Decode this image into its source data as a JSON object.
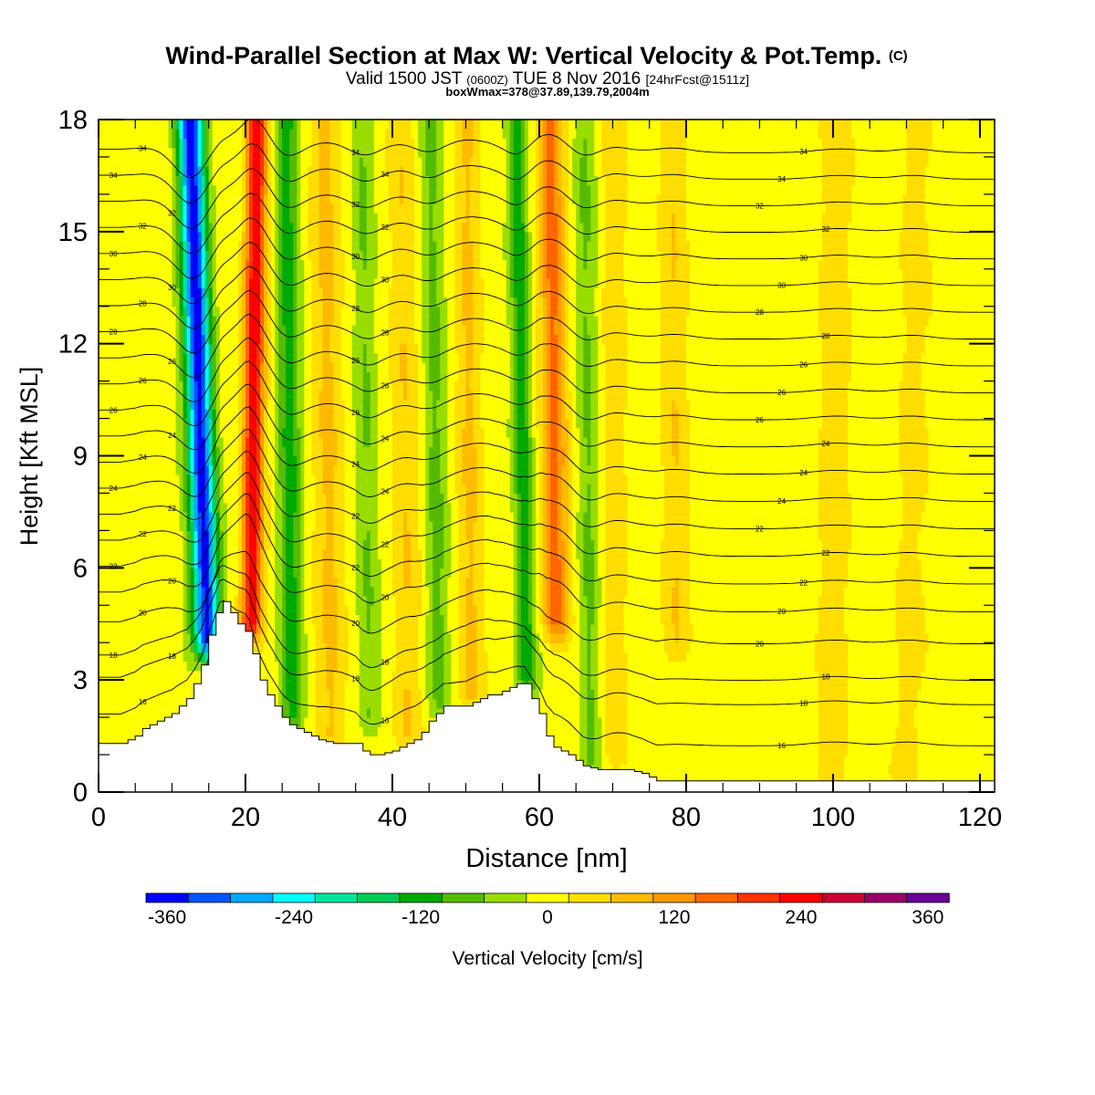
{
  "chart_data": {
    "type": "heatmap",
    "title": "Wind-Parallel Section at Max W: Vertical Velocity & Pot.Temp.",
    "title_mark": "(C)",
    "subtitle": {
      "a": "Valid 1500 JST ",
      "b": "(0600Z)",
      "c": " TUE 8 Nov 2016 ",
      "d": "[24hrFcst@1511z]"
    },
    "subtitle2": "boxWmax=378@37.89,139.79,2004m",
    "xlabel": "Distance [nm]",
    "ylabel": "Height [Kft MSL]",
    "xlim": [
      0,
      122
    ],
    "ylim": [
      0,
      18
    ],
    "xticks": [
      0,
      20,
      40,
      60,
      80,
      100,
      120
    ],
    "yticks": [
      0,
      3,
      6,
      9,
      12,
      15,
      18
    ],
    "colorbar": {
      "label": "Vertical Velocity [cm/s]",
      "min": -380,
      "max": 380,
      "step": 40,
      "tick_values": [
        -360,
        -240,
        -120,
        0,
        120,
        240,
        360
      ],
      "tick_labels": [
        "-360",
        "-240",
        "-120",
        "0",
        "120",
        "240",
        "360"
      ],
      "colors": [
        "#0000ff",
        "#0055ff",
        "#00aaff",
        "#00ffff",
        "#00e5a0",
        "#00cc55",
        "#00aa00",
        "#55bb00",
        "#99dd00",
        "#ffff00",
        "#ffdd00",
        "#ffbb00",
        "#ff9900",
        "#ff6600",
        "#ff3300",
        "#ff0000",
        "#cc0033",
        "#990066",
        "#660099"
      ]
    },
    "velocity_features": [
      {
        "type": "downdraft",
        "x_base": 15.5,
        "x_top": 12.5,
        "sigma": 1.8,
        "amplitude": -360,
        "z_min": 4.0,
        "z_max": 18
      },
      {
        "type": "updraft",
        "x_base": 20.5,
        "x_top": 21.5,
        "sigma": 1.4,
        "amplitude": 250,
        "z_min": 4.5,
        "z_max": 18
      },
      {
        "type": "downdraft",
        "x_base": 26.5,
        "x_top": 25.5,
        "sigma": 1.6,
        "amplitude": -110,
        "z_min": 2.0,
        "z_max": 18
      },
      {
        "type": "updraft",
        "x_base": 32,
        "x_top": 31,
        "sigma": 2.0,
        "amplitude": 70,
        "z_min": 1.5,
        "z_max": 18
      },
      {
        "type": "downdraft",
        "x_base": 37,
        "x_top": 36,
        "sigma": 1.5,
        "amplitude": -70,
        "z_min": 2.0,
        "z_max": 18
      },
      {
        "type": "updraft",
        "x_base": 42,
        "x_top": 41,
        "sigma": 1.8,
        "amplitude": 60,
        "z_min": 1.5,
        "z_max": 18
      },
      {
        "type": "downdraft",
        "x_base": 46.5,
        "x_top": 45,
        "sigma": 1.5,
        "amplitude": -70,
        "z_min": 2.5,
        "z_max": 18
      },
      {
        "type": "updraft",
        "x_base": 51,
        "x_top": 50,
        "sigma": 1.8,
        "amplitude": 60,
        "z_min": 2.5,
        "z_max": 18
      },
      {
        "type": "downdraft",
        "x_base": 58.5,
        "x_top": 57,
        "sigma": 1.3,
        "amplitude": -130,
        "z_min": 3.0,
        "z_max": 18
      },
      {
        "type": "updraft",
        "x_base": 62.5,
        "x_top": 61.5,
        "sigma": 1.7,
        "amplitude": 160,
        "z_min": 4.5,
        "z_max": 18
      },
      {
        "type": "downdraft",
        "x_base": 67,
        "x_top": 66,
        "sigma": 1.5,
        "amplitude": -65,
        "z_min": 1.0,
        "z_max": 18
      },
      {
        "type": "updraft",
        "x_base": 70,
        "x_top": 70,
        "sigma": 1.6,
        "amplitude": 50,
        "z_min": 1.0,
        "z_max": 18
      },
      {
        "type": "updraft",
        "x_base": 79,
        "x_top": 78,
        "sigma": 2.0,
        "amplitude": 50,
        "z_min": 4.0,
        "z_max": 18
      },
      {
        "type": "updraft",
        "x_base": 100,
        "x_top": 101,
        "sigma": 2.5,
        "amplitude": 40,
        "z_min": 0.5,
        "z_max": 18
      },
      {
        "type": "updraft",
        "x_base": 110,
        "x_top": 111,
        "sigma": 2.0,
        "amplitude": 40,
        "z_min": 0.5,
        "z_max": 18
      }
    ],
    "terrain": {
      "x": [
        0,
        3,
        5,
        6,
        8,
        10,
        11,
        12,
        13,
        14,
        15,
        16.5,
        17,
        18,
        19,
        20,
        20.5,
        21,
        22,
        23,
        24,
        25,
        26,
        28,
        30,
        32,
        34,
        35,
        36,
        37,
        38,
        40,
        42,
        43,
        44,
        45,
        46,
        47,
        48,
        50,
        52,
        53,
        54,
        56,
        57,
        58,
        59,
        60,
        61,
        62,
        64,
        66,
        68,
        70,
        72,
        74,
        75,
        76,
        80,
        90,
        100,
        110,
        122
      ],
      "z": [
        1.3,
        1.3,
        1.5,
        1.7,
        1.9,
        2.1,
        2.3,
        2.5,
        2.9,
        3.4,
        4.2,
        5.1,
        5.1,
        4.8,
        4.5,
        4.3,
        4.1,
        3.7,
        3.0,
        2.6,
        2.3,
        2.0,
        1.8,
        1.6,
        1.4,
        1.3,
        1.3,
        1.3,
        1.1,
        1.0,
        1.0,
        1.1,
        1.3,
        1.4,
        1.6,
        1.9,
        2.1,
        2.3,
        2.3,
        2.3,
        2.5,
        2.6,
        2.6,
        2.8,
        2.9,
        2.9,
        2.5,
        2.1,
        1.5,
        1.2,
        1.0,
        0.7,
        0.6,
        0.6,
        0.6,
        0.5,
        0.4,
        0.3,
        0.3,
        0.3,
        0.3,
        0.3,
        0.3
      ]
    },
    "theta_contours": [
      {
        "label": "14",
        "z": 0.9
      },
      {
        "label": "16",
        "z": 2.0
      },
      {
        "label": "18",
        "z": 3.0
      },
      {
        "label": "18",
        "z": 3.6
      },
      {
        "label": "20",
        "z": 4.5
      },
      {
        "label": "20",
        "z": 5.3
      },
      {
        "label": "22",
        "z": 6.0
      },
      {
        "label": "22",
        "z": 6.7
      },
      {
        "label": "22",
        "z": 7.4
      },
      {
        "label": "24",
        "z": 8.1
      },
      {
        "label": "24",
        "z": 8.8
      },
      {
        "label": "24",
        "z": 9.5
      },
      {
        "label": "26",
        "z": 10.2
      },
      {
        "label": "26",
        "z": 10.9
      },
      {
        "label": "26",
        "z": 11.6
      },
      {
        "label": "28",
        "z": 12.3
      },
      {
        "label": "28",
        "z": 13.0
      },
      {
        "label": "30",
        "z": 13.7
      },
      {
        "label": "30",
        "z": 14.4
      },
      {
        "label": "32",
        "z": 15.1
      },
      {
        "label": "32",
        "z": 15.8
      },
      {
        "label": "34",
        "z": 16.5
      },
      {
        "label": "34",
        "z": 17.2
      }
    ]
  }
}
